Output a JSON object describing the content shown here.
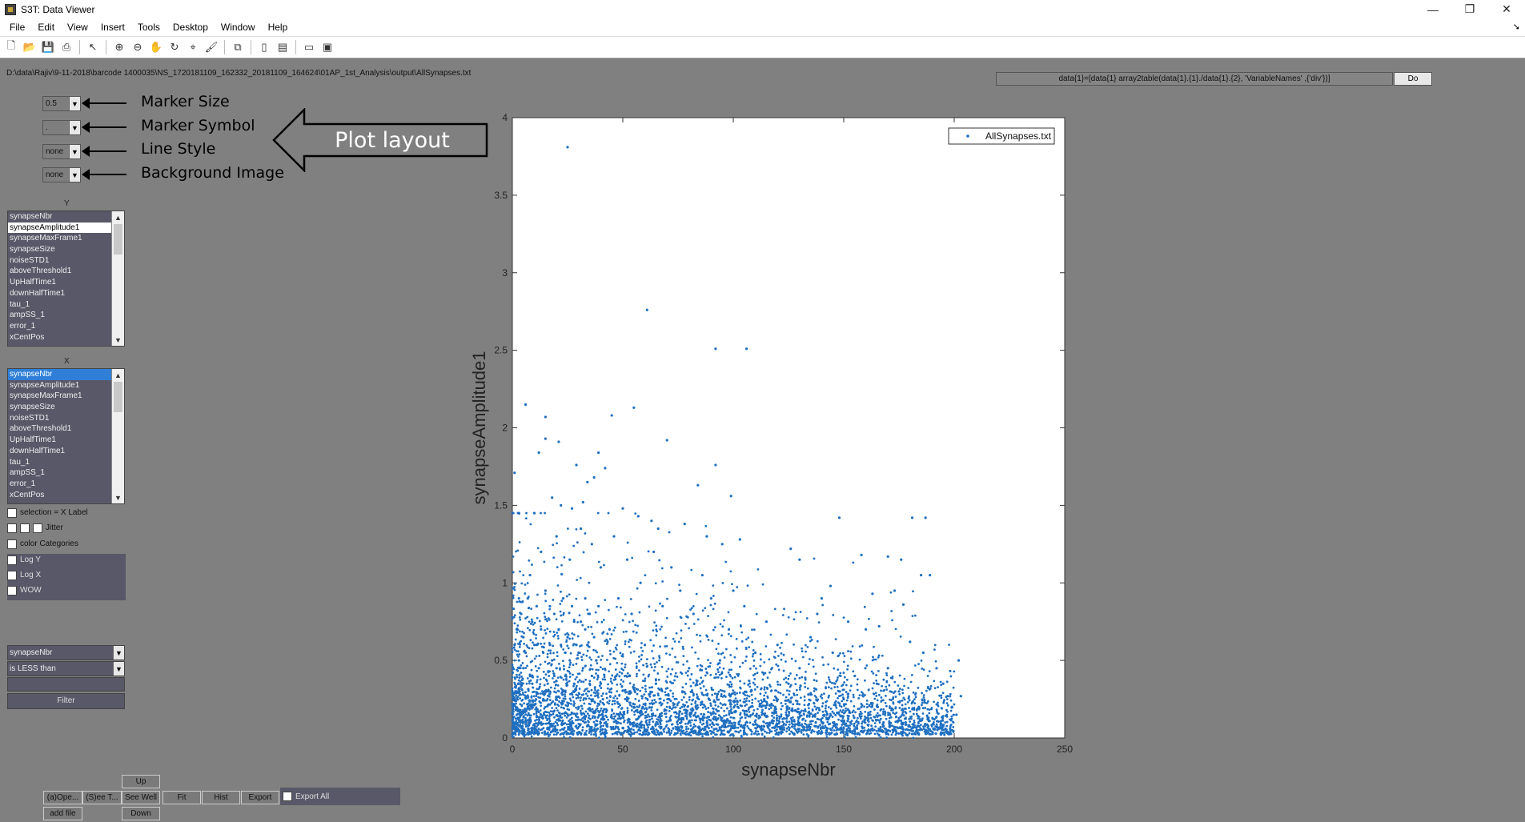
{
  "window": {
    "title": "S3T: Data Viewer",
    "minimize_glyph": "—",
    "restore_glyph": "❐",
    "close_glyph": "✕"
  },
  "menu": {
    "items": [
      {
        "label": "File"
      },
      {
        "label": "Edit"
      },
      {
        "label": "View"
      },
      {
        "label": "Insert"
      },
      {
        "label": "Tools"
      },
      {
        "label": "Desktop"
      },
      {
        "label": "Window"
      },
      {
        "label": "Help"
      }
    ],
    "dock_glyph": "➘"
  },
  "toolbar": {
    "icons": [
      "new-figure-icon",
      "open-file-icon",
      "save-icon",
      "print-icon",
      "select-arrow-icon",
      "zoom-in-icon",
      "zoom-out-icon",
      "pan-icon",
      "rotate-icon",
      "data-cursor-icon",
      "brush-icon",
      "link-plot-icon",
      "colorbar-icon",
      "legend-icon",
      "hide-plot-tools-icon",
      "show-plot-tools-icon"
    ]
  },
  "file_path": "D:\\data\\Rajiv\\9-11-2018\\barcode 1400035\\NS_1720181109_162332_20181109_164624\\01AP_1st_Analysis\\output\\AllSynapses.txt",
  "command": {
    "value": "data{1}=[data{1} array2table(data{1}.{1}./data{1}.{2}, 'VariableNames' ,{'div'})]",
    "do_label": "Do"
  },
  "layout_controls": {
    "marker_size": {
      "value": "0.5",
      "label": "Marker Size"
    },
    "marker_symbol": {
      "value": ".",
      "label": "Marker Symbol"
    },
    "line_style": {
      "value": "none",
      "label": "Line Style"
    },
    "background_image": {
      "value": "none",
      "label": "Background Image"
    },
    "callout": "Plot layout"
  },
  "y_list": {
    "title": "Y",
    "items": [
      "synapseNbr",
      "synapseAmplitude1",
      "synapseMaxFrame1",
      "synapseSize",
      "noiseSTD1",
      "aboveThreshold1",
      "UpHalfTime1",
      "downHalfTime1",
      "tau_1",
      "ampSS_1",
      "error_1",
      "xCentPos"
    ],
    "selected": "synapseAmplitude1"
  },
  "x_list": {
    "title": "X",
    "items": [
      "synapseNbr",
      "synapseAmplitude1",
      "synapseMaxFrame1",
      "synapseSize",
      "noiseSTD1",
      "aboveThreshold1",
      "UpHalfTime1",
      "downHalfTime1",
      "tau_1",
      "ampSS_1",
      "error_1",
      "xCentPos"
    ],
    "selected": "synapseNbr"
  },
  "options": {
    "selection_x_label": "selection = X Label",
    "jitter": "Jitter",
    "color_categories": "color Categories",
    "log_y": "Log Y",
    "log_x": "Log X",
    "wow": "WOW"
  },
  "filter": {
    "variable": "synapseNbr",
    "condition": "is LESS than",
    "value": "",
    "button_label": "Filter"
  },
  "bottom_buttons": {
    "up": "Up",
    "open": "(a)Ope...",
    "see_t": "(S)ee T...",
    "see_well": "See Well",
    "fit": "Fit",
    "hist": "Hist",
    "export": "Export",
    "export_all": "Export All",
    "add_file": "add file",
    "down": "Down"
  },
  "colors": {
    "marker": "#1f6fc0",
    "background": "#808080",
    "panel": "#585868",
    "selection_blue": "#2f7fd8"
  },
  "chart_data": {
    "type": "scatter",
    "title": "",
    "xlabel": "synapseNbr",
    "ylabel": "synapseAmplitude1",
    "xlim": [
      0,
      250
    ],
    "ylim": [
      0,
      4
    ],
    "x_ticks": [
      "0",
      "50",
      "100",
      "150",
      "200",
      "250"
    ],
    "y_ticks": [
      "0",
      "0.5",
      "1",
      "1.5",
      "2",
      "2.5",
      "3",
      "3.5",
      "4"
    ],
    "grid": false,
    "legend": {
      "placement": "top-right",
      "entries": [
        "AllSynapses.txt"
      ]
    },
    "series": [
      {
        "name": "AllSynapses.txt",
        "points": [
          [
            25,
            3.81
          ],
          [
            61,
            2.76
          ],
          [
            92,
            2.51
          ],
          [
            106,
            2.51
          ],
          [
            6,
            2.15
          ],
          [
            15,
            2.07
          ],
          [
            45,
            2.08
          ],
          [
            55,
            2.13
          ],
          [
            70,
            1.92
          ],
          [
            15,
            1.93
          ],
          [
            21,
            1.91
          ],
          [
            12,
            1.84
          ],
          [
            39,
            1.84
          ],
          [
            29,
            1.76
          ],
          [
            42,
            1.74
          ],
          [
            92,
            1.76
          ],
          [
            84,
            1.63
          ],
          [
            99,
            1.56
          ],
          [
            148,
            1.42
          ],
          [
            181,
            1.42
          ],
          [
            187,
            1.42
          ],
          [
            1,
            1.71
          ],
          [
            3,
            1.45
          ],
          [
            10,
            1.45
          ],
          [
            27,
            1.48
          ],
          [
            32,
            1.52
          ],
          [
            34,
            1.65
          ],
          [
            37,
            1.68
          ],
          [
            18,
            1.55
          ],
          [
            22,
            1.5
          ],
          [
            50,
            1.48
          ],
          [
            57,
            1.43
          ],
          [
            63,
            1.4
          ],
          [
            66,
            1.35
          ],
          [
            78,
            1.38
          ],
          [
            88,
            1.3
          ],
          [
            95,
            1.25
          ],
          [
            103,
            1.28
          ],
          [
            126,
            1.22
          ],
          [
            130,
            1.15
          ],
          [
            158,
            1.18
          ],
          [
            170,
            1.17
          ],
          [
            176,
            1.15
          ],
          [
            185,
            1.05
          ],
          [
            189,
            1.05
          ],
          [
            173,
            0.95
          ],
          [
            177,
            0.86
          ],
          [
            163,
            0.93
          ],
          [
            144,
            0.98
          ],
          [
            140,
            0.9
          ],
          [
            138,
            0.8
          ],
          [
            152,
            0.75
          ],
          [
            160,
            0.7
          ],
          [
            166,
            0.72
          ],
          [
            180,
            0.62
          ],
          [
            186,
            0.55
          ],
          [
            192,
            0.45
          ],
          [
            195,
            0.35
          ],
          [
            197,
            0.27
          ],
          [
            199,
            0.2
          ],
          [
            201,
            0.15
          ],
          [
            202,
            0.5
          ],
          [
            203,
            0.27
          ],
          [
            191,
            0.12
          ],
          [
            184,
            0.2
          ],
          [
            175,
            0.3
          ],
          [
            170,
            0.45
          ],
          [
            165,
            0.35
          ],
          [
            155,
            0.4
          ],
          [
            150,
            0.25
          ],
          [
            145,
            0.55
          ],
          [
            135,
            0.65
          ],
          [
            130,
            0.45
          ],
          [
            125,
            0.35
          ],
          [
            120,
            0.6
          ],
          [
            115,
            0.75
          ],
          [
            110,
            0.55
          ],
          [
            105,
            0.85
          ],
          [
            100,
            0.95
          ],
          [
            98,
            0.7
          ],
          [
            94,
            0.5
          ],
          [
            90,
            0.9
          ],
          [
            86,
            1.05
          ],
          [
            82,
            0.8
          ],
          [
            80,
            0.45
          ],
          [
            76,
            0.95
          ],
          [
            72,
            1.1
          ],
          [
            68,
            0.85
          ],
          [
            64,
            1.2
          ],
          [
            60,
            0.6
          ],
          [
            58,
            1.0
          ],
          [
            54,
            0.8
          ],
          [
            52,
            1.15
          ],
          [
            48,
            0.9
          ],
          [
            46,
            1.3
          ],
          [
            44,
            0.7
          ],
          [
            40,
            1.1
          ],
          [
            38,
            0.5
          ],
          [
            36,
            1.25
          ],
          [
            33,
            0.9
          ],
          [
            31,
            1.35
          ],
          [
            28,
            0.75
          ],
          [
            26,
            1.15
          ],
          [
            24,
            0.55
          ],
          [
            20,
            1.3
          ],
          [
            17,
            0.85
          ],
          [
            13,
            1.2
          ],
          [
            11,
            0.6
          ],
          [
            8,
            1.05
          ],
          [
            5,
            0.45
          ],
          [
            3,
            0.9
          ],
          [
            2,
            0.3
          ],
          [
            4,
            0.15
          ],
          [
            7,
            0.2
          ],
          [
            9,
            0.35
          ],
          [
            14,
            0.25
          ],
          [
            19,
            0.4
          ],
          [
            23,
            0.3
          ],
          [
            30,
            0.2
          ],
          [
            35,
            0.35
          ],
          [
            41,
            0.25
          ],
          [
            47,
            0.4
          ],
          [
            53,
            0.3
          ],
          [
            59,
            0.2
          ],
          [
            65,
            0.35
          ],
          [
            71,
            0.25
          ],
          [
            77,
            0.3
          ],
          [
            83,
            0.2
          ],
          [
            89,
            0.25
          ],
          [
            96,
            0.3
          ],
          [
            102,
            0.2
          ],
          [
            108,
            0.3
          ],
          [
            114,
            0.25
          ],
          [
            119,
            0.2
          ],
          [
            124,
            0.15
          ],
          [
            129,
            0.22
          ],
          [
            134,
            0.28
          ],
          [
            139,
            0.18
          ],
          [
            143,
            0.12
          ],
          [
            148,
            0.3
          ],
          [
            153,
            0.1
          ],
          [
            158,
            0.2
          ],
          [
            162,
            0.15
          ],
          [
            168,
            0.1
          ],
          [
            172,
            0.18
          ],
          [
            178,
            0.1
          ],
          [
            182,
            0.08
          ],
          [
            188,
            0.12
          ],
          [
            193,
            0.06
          ],
          [
            1,
            0.6
          ],
          [
            2,
            0.7
          ],
          [
            3,
            0.5
          ],
          [
            4,
            0.8
          ],
          [
            5,
            0.65
          ],
          [
            6,
            0.55
          ],
          [
            7,
            0.9
          ],
          [
            8,
            0.4
          ],
          [
            9,
            0.75
          ],
          [
            10,
            0.6
          ],
          [
            11,
            0.85
          ],
          [
            12,
            0.45
          ],
          [
            13,
            0.7
          ],
          [
            14,
            0.55
          ],
          [
            15,
            0.95
          ],
          [
            16,
            0.35
          ],
          [
            17,
            0.6
          ],
          [
            18,
            0.5
          ],
          [
            19,
            0.8
          ],
          [
            20,
            0.45
          ],
          [
            21,
            0.7
          ],
          [
            22,
            0.6
          ],
          [
            23,
            0.9
          ],
          [
            24,
            0.4
          ],
          [
            25,
            0.65
          ],
          [
            26,
            0.5
          ],
          [
            27,
            0.85
          ],
          [
            28,
            0.35
          ],
          [
            29,
            0.6
          ],
          [
            30,
            0.55
          ],
          [
            31,
            0.75
          ],
          [
            32,
            0.45
          ],
          [
            33,
            0.7
          ],
          [
            34,
            0.6
          ],
          [
            35,
            0.8
          ],
          [
            36,
            0.4
          ],
          [
            37,
            0.65
          ],
          [
            38,
            0.5
          ],
          [
            39,
            0.85
          ],
          [
            40,
            0.35
          ]
        ]
      }
    ]
  }
}
